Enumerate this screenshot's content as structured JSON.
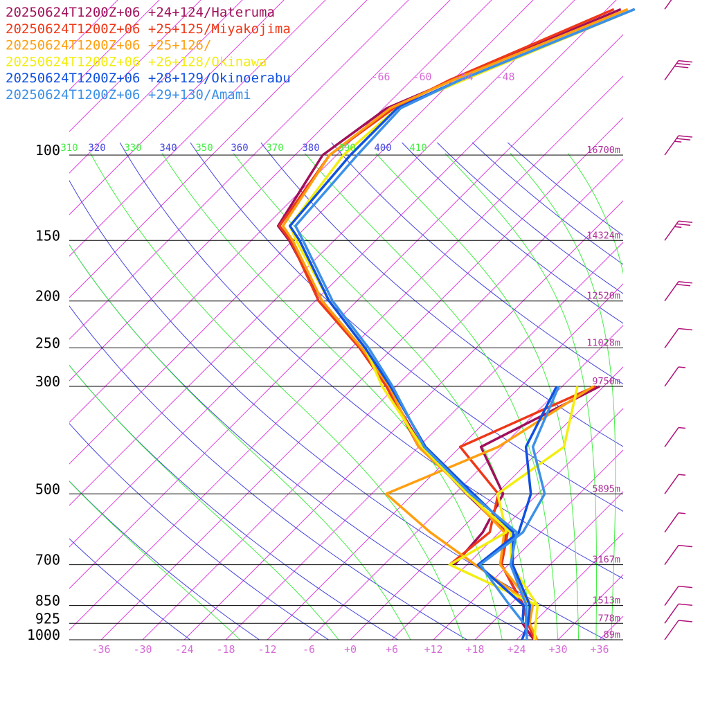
{
  "colors": {
    "isobar": "#000000",
    "isotherm": "#e040e0",
    "dry_adiabat": "#4444dd",
    "moist_adiabat": "#44ee44",
    "height_label": "#b0309a",
    "wind_barb": "#b0107a"
  },
  "chart_data": {
    "type": "line",
    "subtype": "skew-T log-p sounding",
    "title": "",
    "xlabel": "",
    "ylabel": "",
    "grid": true,
    "legend_position": "top-left",
    "pressure_levels": [
      100,
      150,
      200,
      250,
      300,
      500,
      700,
      850,
      925,
      1000
    ],
    "pressure_level_labels": [
      "100",
      "150",
      "200",
      "250",
      "300",
      "500",
      "700",
      "850",
      "925",
      "1000"
    ],
    "pressure_range_hpa": [
      1000,
      100
    ],
    "temperature_ticks": [
      "-36",
      "-30",
      "-24",
      "-18",
      "-12",
      "-6",
      "+0",
      "+6",
      "+12",
      "+18",
      "+24",
      "+30",
      "+36"
    ],
    "temperature_tick_values": [
      -36,
      -30,
      -24,
      -18,
      -12,
      -6,
      0,
      6,
      12,
      18,
      24,
      30,
      36
    ],
    "upper_temperature_labels": [
      "-66",
      "-60",
      "-54",
      "-48"
    ],
    "theta_labels": [
      {
        "text": "310",
        "kind": "moist",
        "value": 310
      },
      {
        "text": "320",
        "kind": "dry",
        "value": 320
      },
      {
        "text": "330",
        "kind": "moist",
        "value": 330
      },
      {
        "text": "340",
        "kind": "dry",
        "value": 340
      },
      {
        "text": "350",
        "kind": "moist",
        "value": 350
      },
      {
        "text": "360",
        "kind": "dry",
        "value": 360
      },
      {
        "text": "370",
        "kind": "moist",
        "value": 370
      },
      {
        "text": "380",
        "kind": "dry",
        "value": 380
      },
      {
        "text": "390",
        "kind": "moist",
        "value": 390
      },
      {
        "text": "400",
        "kind": "dry",
        "value": 400
      },
      {
        "text": "410",
        "kind": "moist",
        "value": 410
      }
    ],
    "height_labels": [
      {
        "p": 100,
        "text": "16700m"
      },
      {
        "p": 150,
        "text": "14324m"
      },
      {
        "p": 200,
        "text": "12520m"
      },
      {
        "p": 250,
        "text": "11028m"
      },
      {
        "p": 300,
        "text": "9750m"
      },
      {
        "p": 500,
        "text": "5895m"
      },
      {
        "p": 700,
        "text": "3167m"
      },
      {
        "p": 850,
        "text": "1513m"
      },
      {
        "p": 925,
        "text": "778m"
      },
      {
        "p": 1000,
        "text": "89m"
      }
    ],
    "series": [
      {
        "name": "20250624T1200Z+06 +24+124/Hateruma",
        "color": "#a0105a",
        "temperature": [
          [
            1000,
            26.5
          ],
          [
            925,
            22.5
          ],
          [
            850,
            20.1
          ],
          [
            700,
            11.0
          ],
          [
            600,
            7.0
          ],
          [
            500,
            -4.3
          ],
          [
            400,
            -17.5
          ],
          [
            300,
            -31.4
          ],
          [
            250,
            -40.5
          ],
          [
            200,
            -53.0
          ],
          [
            150,
            -66.5
          ],
          [
            140,
            -70.2
          ],
          [
            100,
            -74.0
          ],
          [
            80,
            -71.5
          ],
          [
            70,
            -66.0
          ],
          [
            50,
            -52.0
          ]
        ],
        "dewpoint": [
          [
            700,
            4.2
          ],
          [
            600,
            3.6
          ],
          [
            500,
            1.0
          ],
          [
            400,
            -9.0
          ],
          [
            300,
            -0.6
          ]
        ]
      },
      {
        "name": "20250624T1200Z+06 +25+125/Miyakojima",
        "color": "#ee3818",
        "temperature": [
          [
            1000,
            26.6
          ],
          [
            925,
            23.3
          ],
          [
            850,
            20.0
          ],
          [
            700,
            11.0
          ],
          [
            600,
            7.2
          ],
          [
            500,
            -4.0
          ],
          [
            400,
            -18.0
          ],
          [
            300,
            -31.4
          ],
          [
            250,
            -40.8
          ],
          [
            200,
            -53.5
          ],
          [
            150,
            -66.3
          ],
          [
            140,
            -70.0
          ],
          [
            100,
            -73.0
          ],
          [
            80,
            -70.5
          ],
          [
            70,
            -66.5
          ],
          [
            50,
            -53.0
          ]
        ],
        "dewpoint": [
          [
            700,
            3.5
          ],
          [
            600,
            4.6
          ],
          [
            500,
            0.3
          ],
          [
            400,
            -12.0
          ],
          [
            300,
            -1.2
          ]
        ]
      },
      {
        "name": "20250624T1200Z+06 +25+126/",
        "color": "#ff9f10",
        "temperature": [
          [
            1000,
            27.0
          ],
          [
            925,
            23.5
          ],
          [
            850,
            21.4
          ],
          [
            700,
            10.8
          ],
          [
            600,
            6.7
          ],
          [
            500,
            -4.0
          ],
          [
            400,
            -18.0
          ],
          [
            300,
            -31.0
          ],
          [
            250,
            -40.5
          ],
          [
            200,
            -53.0
          ],
          [
            150,
            -66.0
          ],
          [
            140,
            -69.5
          ],
          [
            100,
            -73.0
          ],
          [
            80,
            -71.0
          ],
          [
            70,
            -66.0
          ],
          [
            50,
            -51.0
          ]
        ],
        "dewpoint": [
          [
            850,
            21.4
          ],
          [
            700,
            7.2
          ],
          [
            600,
            -4.0
          ],
          [
            500,
            -15.9
          ],
          [
            400,
            -6.5
          ],
          [
            300,
            -1.5
          ]
        ]
      },
      {
        "name": "20250624T1200Z+06 +26+128/Okinawa",
        "color": "#f2ee10",
        "temperature": [
          [
            1000,
            26.6
          ],
          [
            925,
            24.4
          ],
          [
            850,
            22.1
          ],
          [
            700,
            12.4
          ],
          [
            600,
            7.6
          ],
          [
            500,
            -4.2
          ],
          [
            400,
            -17.5
          ],
          [
            300,
            -32.0
          ],
          [
            250,
            -40.0
          ],
          [
            200,
            -52.0
          ],
          [
            150,
            -65.5
          ],
          [
            140,
            -68.5
          ],
          [
            100,
            -71.0
          ],
          [
            80,
            -70.0
          ],
          [
            70,
            -64.5
          ],
          [
            50,
            -50.0
          ]
        ],
        "dewpoint": [
          [
            850,
            22.1
          ],
          [
            700,
            3.5
          ],
          [
            600,
            7.0
          ],
          [
            500,
            0.2
          ],
          [
            400,
            3.0
          ],
          [
            300,
            -3.8
          ]
        ]
      },
      {
        "name": "20250624T1200Z+06 +28+129/Okinoerabu",
        "color": "#1050e0",
        "temperature": [
          [
            1000,
            24.8
          ],
          [
            925,
            23.3
          ],
          [
            850,
            21.0
          ],
          [
            700,
            12.6
          ],
          [
            600,
            8.0
          ],
          [
            500,
            -3.3
          ],
          [
            400,
            -17.0
          ],
          [
            300,
            -30.8
          ],
          [
            250,
            -40.0
          ],
          [
            200,
            -52.0
          ],
          [
            150,
            -65.0
          ],
          [
            140,
            -68.5
          ],
          [
            100,
            -70.0
          ],
          [
            80,
            -70.0
          ],
          [
            70,
            -65.0
          ],
          [
            50,
            -50.0
          ]
        ],
        "dewpoint": [
          [
            925,
            22.5
          ],
          [
            850,
            20.1
          ],
          [
            700,
            7.6
          ],
          [
            600,
            8.8
          ],
          [
            500,
            5.0
          ],
          [
            400,
            -2.5
          ],
          [
            300,
            -6.8
          ]
        ]
      },
      {
        "name": "20250624T1200Z+06 +29+130/Amami",
        "color": "#3c90e8",
        "temperature": [
          [
            1000,
            25.5
          ],
          [
            925,
            23.0
          ],
          [
            850,
            20.5
          ],
          [
            700,
            12.3
          ],
          [
            600,
            8.5
          ],
          [
            500,
            -3.7
          ],
          [
            400,
            -17.2
          ],
          [
            300,
            -30.5
          ],
          [
            250,
            -39.5
          ],
          [
            200,
            -51.5
          ],
          [
            150,
            -64.5
          ],
          [
            140,
            -67.7
          ],
          [
            100,
            -69.0
          ],
          [
            80,
            -69.5
          ],
          [
            70,
            -65.0
          ],
          [
            50,
            -50.0
          ]
        ],
        "dewpoint": [
          [
            925,
            22.7
          ],
          [
            850,
            18.1
          ],
          [
            700,
            7.9
          ],
          [
            600,
            9.4
          ],
          [
            500,
            7.0
          ],
          [
            400,
            -1.5
          ],
          [
            300,
            -6.5
          ]
        ]
      }
    ],
    "wind_barbs": [
      {
        "p": 1000,
        "speed_kt": 10
      },
      {
        "p": 925,
        "speed_kt": 10
      },
      {
        "p": 850,
        "speed_kt": 10
      },
      {
        "p": 700,
        "speed_kt": 10
      },
      {
        "p": 600,
        "speed_kt": 5
      },
      {
        "p": 500,
        "speed_kt": 5
      },
      {
        "p": 400,
        "speed_kt": 5
      },
      {
        "p": 300,
        "speed_kt": 5
      },
      {
        "p": 250,
        "speed_kt": 10
      },
      {
        "p": 200,
        "speed_kt": 20
      },
      {
        "p": 150,
        "speed_kt": 25
      },
      {
        "p": 100,
        "speed_kt": 25
      },
      {
        "p": 70,
        "speed_kt": 30
      },
      {
        "p": 50,
        "speed_kt": 35
      }
    ]
  }
}
